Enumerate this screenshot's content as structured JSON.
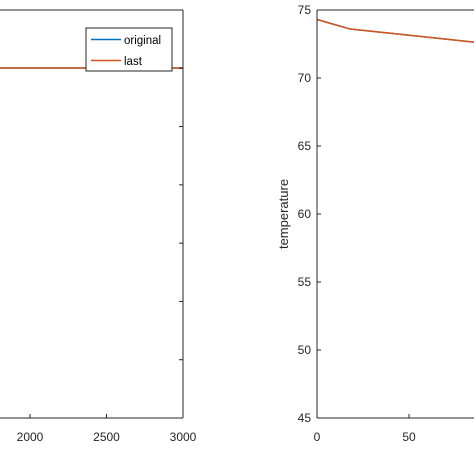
{
  "chart_data": [
    {
      "type": "line",
      "title": "",
      "xlabel": "",
      "ylabel": "",
      "x_ticks": [
        2000,
        2500,
        3000
      ],
      "xlim": [
        1500,
        3000
      ],
      "series": [
        {
          "name": "original",
          "color": "#0072BD",
          "x": [
            1500,
            3000
          ],
          "y": [
            70,
            70
          ]
        },
        {
          "name": "last",
          "color": "#D95319",
          "x": [
            1500,
            3000
          ],
          "y": [
            70,
            70
          ]
        }
      ],
      "legend": {
        "position": "top-right"
      },
      "grid": false
    },
    {
      "type": "line",
      "title": "",
      "xlabel": "",
      "ylabel": "temperature",
      "xlim": [
        0,
        100
      ],
      "ylim": [
        45,
        75
      ],
      "x_ticks": [
        0,
        50
      ],
      "y_ticks": [
        45,
        50,
        55,
        60,
        65,
        70,
        75
      ],
      "series": [
        {
          "color": "#0072BD",
          "x": [
            0,
            18,
            95
          ],
          "y": [
            74.3,
            73.6,
            72.5
          ]
        },
        {
          "color": "#D95319",
          "x": [
            0,
            18,
            95
          ],
          "y": [
            74.3,
            73.6,
            72.5
          ]
        }
      ],
      "grid": false
    }
  ]
}
